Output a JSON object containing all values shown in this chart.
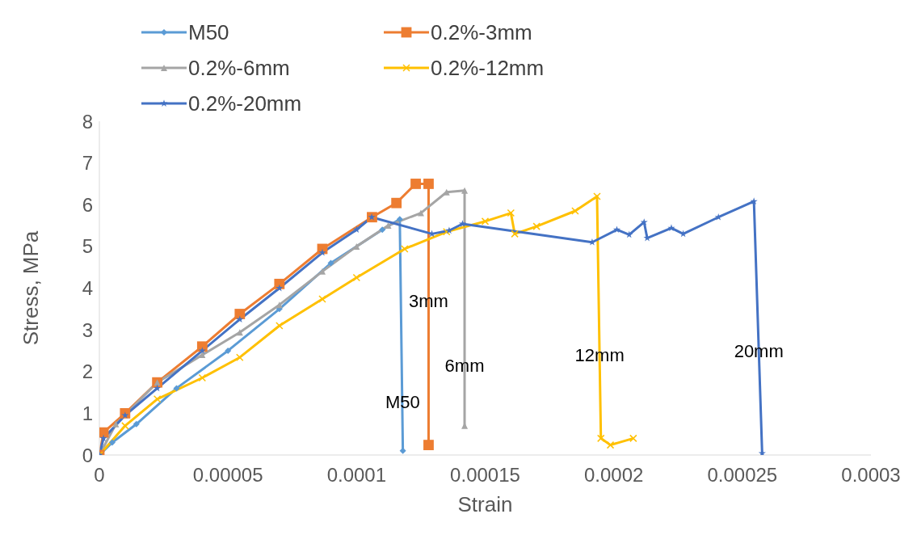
{
  "chart_data": {
    "type": "line",
    "xlabel": "Strain",
    "ylabel": "Stress, MPa",
    "xlim": [
      0,
      0.0003
    ],
    "xticks": [
      0,
      {
        "value": 5e-05,
        "label": "0.00005"
      },
      0.0001,
      0.00015,
      0.0002,
      0.00025,
      0.0003
    ],
    "ylim": [
      0,
      8
    ],
    "yticks": [
      0,
      1,
      2,
      3,
      4,
      5,
      6,
      7,
      8
    ],
    "grid": false,
    "legend": "top",
    "line_style": "solid",
    "series": [
      {
        "name": "M50",
        "color": "#5b9bd5",
        "marker": "diamond",
        "x": [
          0,
          5e-06,
          1.44e-05,
          3e-05,
          5e-05,
          7e-05,
          9e-05,
          0.00011,
          0.0001168,
          0.000118
        ],
        "values": [
          0,
          0.3,
          0.74,
          1.6,
          2.5,
          3.5,
          4.6,
          5.4,
          5.65,
          0.1
        ]
      },
      {
        "name": "0.2%-3mm",
        "color": "#ed7d31",
        "marker": "square",
        "x": [
          0,
          1.6e-06,
          1e-05,
          2.25e-05,
          4e-05,
          5.46e-05,
          7e-05,
          8.67e-05,
          0.000106,
          0.0001155,
          0.000123,
          0.000128,
          0.000128
        ],
        "values": [
          0,
          0.54,
          1.0,
          1.74,
          2.6,
          3.38,
          4.1,
          4.94,
          5.7,
          6.04,
          6.5,
          6.5,
          0.24
        ]
      },
      {
        "name": "0.2%-6mm",
        "color": "#a5a5a5",
        "marker": "triangle",
        "x": [
          0,
          6.4e-06,
          2.25e-05,
          4e-05,
          5.46e-05,
          7e-05,
          8.67e-05,
          0.0001,
          0.0001123,
          0.000125,
          0.000135,
          0.000142,
          0.000142
        ],
        "values": [
          0,
          0.74,
          1.74,
          2.4,
          2.94,
          3.6,
          4.4,
          5.0,
          5.5,
          5.8,
          6.3,
          6.34,
          0.7
        ]
      },
      {
        "name": "0.2%-12mm",
        "color": "#ffc000",
        "marker": "cross",
        "x": [
          0,
          1e-05,
          2.25e-05,
          4e-05,
          5.46e-05,
          7e-05,
          8.67e-05,
          0.0001,
          0.0001187,
          0.000135,
          0.00015,
          0.00016,
          0.0001615,
          0.00017,
          0.000185,
          0.0001935,
          0.000195,
          0.0001987,
          0.0002076
        ],
        "values": [
          0,
          0.7,
          1.34,
          1.85,
          2.34,
          3.1,
          3.74,
          4.25,
          4.94,
          5.35,
          5.6,
          5.8,
          5.3,
          5.48,
          5.85,
          6.2,
          0.4,
          0.24,
          0.4
        ]
      },
      {
        "name": "0.2%-20mm",
        "color": "#4472c4",
        "marker": "star",
        "x": [
          0,
          1.6e-06,
          1e-05,
          2.25e-05,
          4e-05,
          5.46e-05,
          7e-05,
          8.67e-05,
          0.0001,
          0.0001059,
          0.0001293,
          0.000136,
          0.0001412,
          0.0001916,
          0.0002012,
          0.000206,
          0.0002118,
          0.000213,
          0.0002224,
          0.000227,
          0.0002407,
          0.0002545,
          0.0002577
        ],
        "values": [
          0,
          0.4,
          0.95,
          1.6,
          2.5,
          3.25,
          4.0,
          4.85,
          5.4,
          5.7,
          5.3,
          5.38,
          5.54,
          5.1,
          5.4,
          5.28,
          5.58,
          5.2,
          5.44,
          5.3,
          5.7,
          6.08,
          0.04
        ]
      }
    ],
    "annotations": [
      {
        "text": "M50",
        "x": 0.0001179,
        "y": 1.28
      },
      {
        "text": "3mm",
        "x": 0.000128,
        "y": 3.7
      },
      {
        "text": "6mm",
        "x": 0.000142,
        "y": 2.14
      },
      {
        "text": "12mm",
        "x": 0.0001945,
        "y": 2.4
      },
      {
        "text": "20mm",
        "x": 0.0002564,
        "y": 2.5
      }
    ]
  }
}
